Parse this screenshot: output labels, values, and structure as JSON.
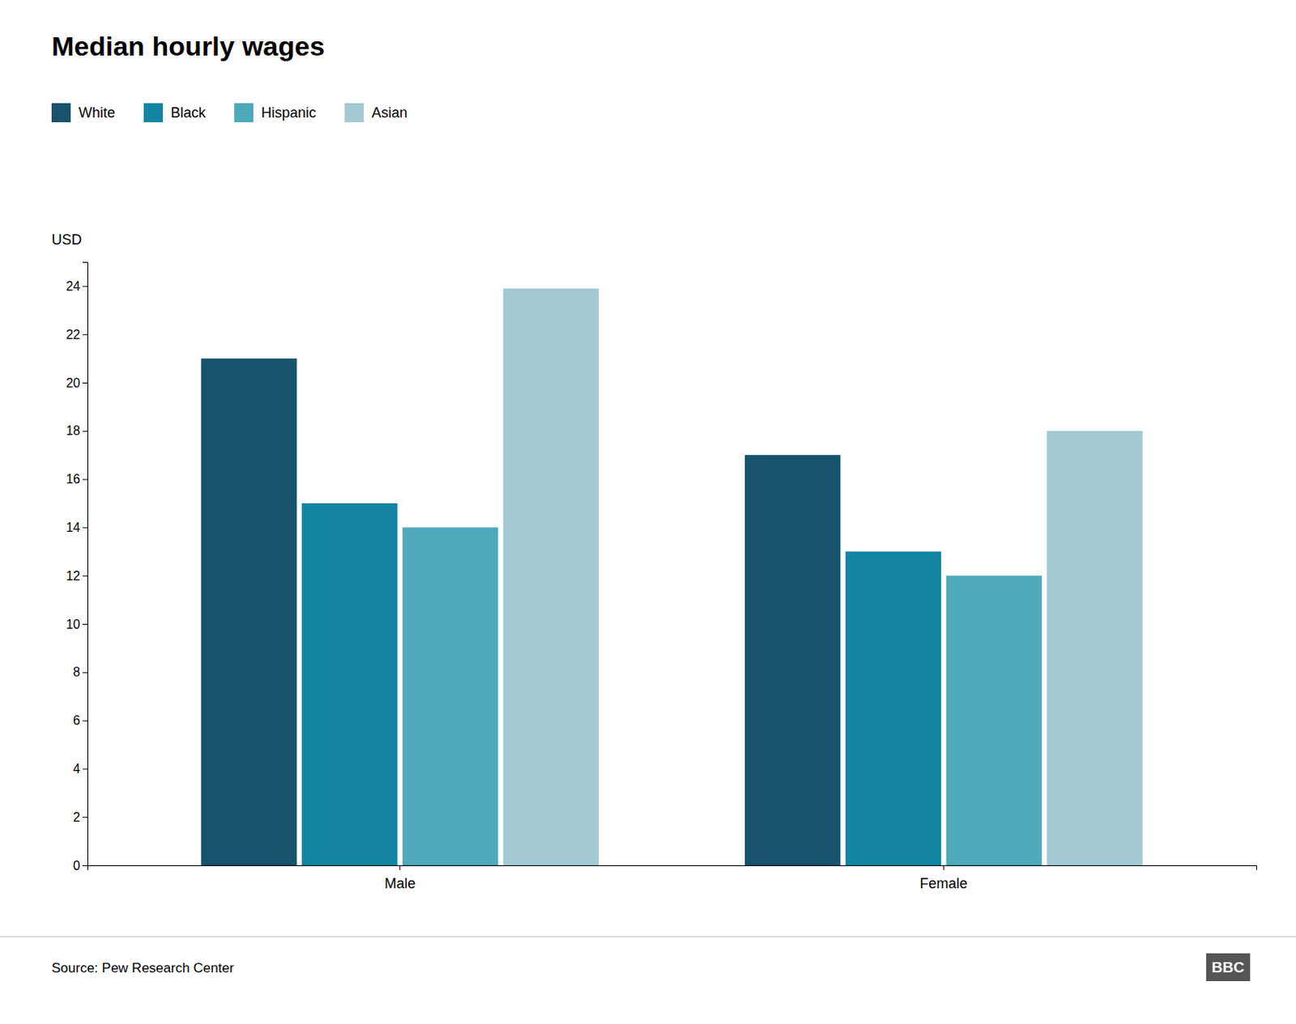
{
  "chart_data": {
    "type": "bar",
    "title": "Median hourly wages",
    "y_label": "USD",
    "annotations": [
      "Source: Pew Research Center",
      "BBC"
    ],
    "categories": [
      "Male",
      "Female"
    ],
    "series": [
      {
        "name": "White",
        "color": "#17536b",
        "values": [
          21.0,
          17.0
        ]
      },
      {
        "name": "Black",
        "color": "#1285a3",
        "values": [
          15.0,
          13.0
        ]
      },
      {
        "name": "Hispanic",
        "color": "#4eaaba",
        "values": [
          14.0,
          12.0
        ]
      },
      {
        "name": "Asian",
        "color": "#a3c9d5",
        "values": [
          23.9,
          18.0
        ]
      }
    ],
    "ylim": [
      0,
      25
    ],
    "yticks": [
      0,
      2,
      4,
      6,
      8,
      10,
      12,
      14,
      16,
      18,
      20,
      22,
      24
    ],
    "grid": false,
    "legend": "top-left"
  }
}
